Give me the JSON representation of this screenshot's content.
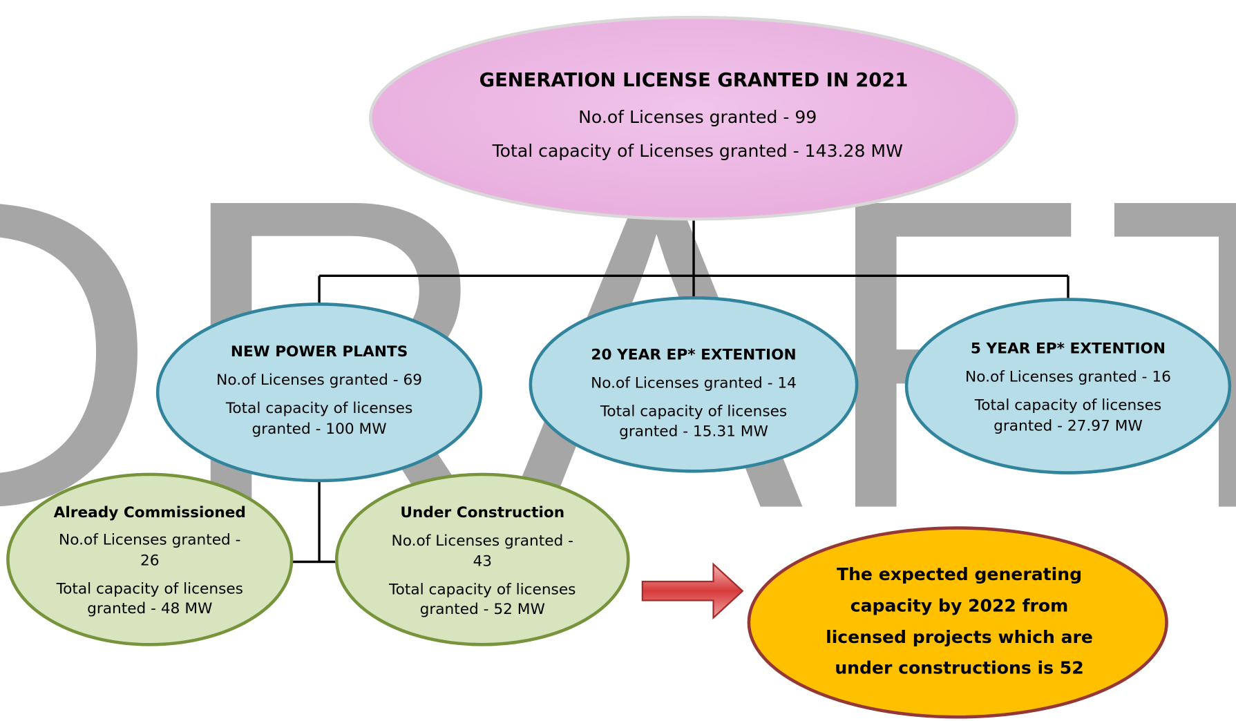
{
  "watermark": "DRAFT",
  "nodes": [
    {
      "title": "GENERATION LICENSE GRANTED IN 2021",
      "lines": [
        "No.of Licenses granted - 99",
        "Total capacity of Licenses granted - 143.28 MW"
      ]
    },
    {
      "title": "NEW POWER PLANTS",
      "lines": [
        "No.of Licenses granted - 69",
        "Total capacity of licenses",
        "granted  - 100 MW"
      ]
    },
    {
      "title": "20 YEAR EP* EXTENTION",
      "lines": [
        "No.of Licenses granted - 14",
        "Total capacity of licenses",
        "granted  - 15.31 MW"
      ]
    },
    {
      "title": "5 YEAR EP* EXTENTION",
      "lines": [
        "No.of Licenses granted - 16",
        "Total capacity of licenses",
        "granted - 27.97 MW"
      ]
    },
    {
      "title": "Already Commissioned",
      "lines": [
        "No.of Licenses granted -",
        "26",
        "Total capacity of licenses",
        "granted   - 48 MW"
      ]
    },
    {
      "title": "Under Construction",
      "lines": [
        "No.of Licenses granted -",
        "43",
        "Total capacity of licenses",
        "granted   - 52 MW"
      ]
    }
  ],
  "expected": [
    "The expected generating",
    "capacity by 2022 from",
    "licensed projects which are",
    "under constructions is 52"
  ]
}
